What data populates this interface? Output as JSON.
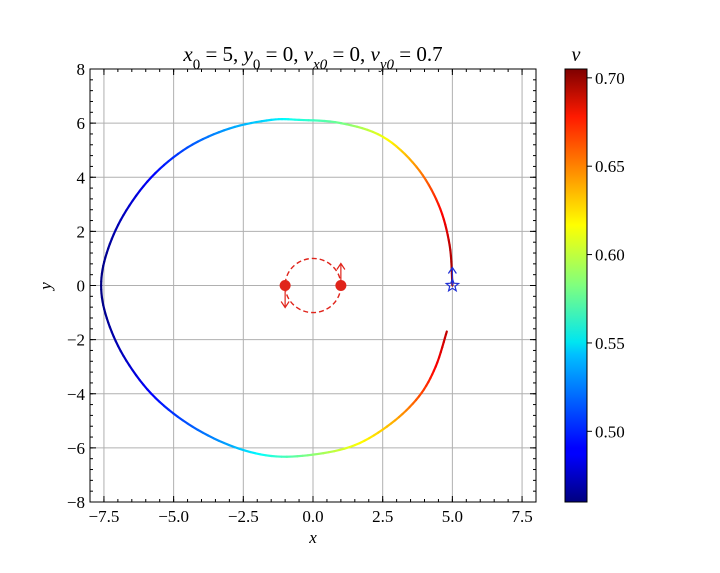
{
  "chart_data": {
    "type": "line",
    "title": {
      "parts": [
        {
          "t": "x",
          "it": true
        },
        {
          "t": "0",
          "sub": true
        },
        {
          "t": " = 5, "
        },
        {
          "t": "y",
          "it": true
        },
        {
          "t": "0",
          "sub": true
        },
        {
          "t": " = 0, "
        },
        {
          "t": "v",
          "it": true
        },
        {
          "t": "x0",
          "sub": true,
          "it": true
        },
        {
          "t": " = 0, "
        },
        {
          "t": "v",
          "it": true
        },
        {
          "t": "y0",
          "sub": true,
          "it": true
        },
        {
          "t": " = 0.7"
        }
      ]
    },
    "xlabel": "x",
    "ylabel": "y",
    "xlim": [
      -8,
      8
    ],
    "ylim": [
      -8,
      8
    ],
    "xticks": [
      -7.5,
      -5.0,
      -2.5,
      0.0,
      2.5,
      5.0,
      7.5
    ],
    "xtick_labels": [
      "−7.5",
      "−5.0",
      "−2.5",
      "0.0",
      "2.5",
      "5.0",
      "7.5"
    ],
    "yticks": [
      -8,
      -6,
      -4,
      -2,
      0,
      2,
      4,
      6,
      8
    ],
    "ytick_labels": [
      "−8",
      "−6",
      "−4",
      "−2",
      "0",
      "2",
      "4",
      "6",
      "8"
    ],
    "grid": true,
    "colorbar": {
      "label": "v",
      "range": [
        0.46,
        0.705
      ],
      "ticks": [
        0.5,
        0.55,
        0.6,
        0.65,
        0.7
      ],
      "tick_labels": [
        "0.50",
        "0.55",
        "0.60",
        "0.65",
        "0.70"
      ],
      "colormap": "jet"
    },
    "trajectory": {
      "points": [
        [
          5.0,
          0.0
        ],
        [
          4.9,
          1.5
        ],
        [
          4.5,
          3.0
        ],
        [
          3.7,
          4.4
        ],
        [
          2.5,
          5.5
        ],
        [
          1.0,
          6.0
        ],
        [
          -0.5,
          6.12
        ],
        [
          -1.5,
          6.12
        ],
        [
          -3.0,
          5.8
        ],
        [
          -4.5,
          5.1
        ],
        [
          -5.8,
          4.0
        ],
        [
          -6.8,
          2.6
        ],
        [
          -7.4,
          1.2
        ],
        [
          -7.6,
          0.0
        ],
        [
          -7.4,
          -1.2
        ],
        [
          -6.8,
          -2.6
        ],
        [
          -5.8,
          -4.0
        ],
        [
          -4.5,
          -5.1
        ],
        [
          -3.0,
          -5.9
        ],
        [
          -1.5,
          -6.3
        ],
        [
          0.0,
          -6.25
        ],
        [
          1.5,
          -5.9
        ],
        [
          2.8,
          -5.1
        ],
        [
          3.8,
          -4.1
        ],
        [
          4.4,
          -3.0
        ],
        [
          4.8,
          -1.7
        ]
      ],
      "speeds": [
        0.7,
        0.69,
        0.67,
        0.64,
        0.61,
        0.58,
        0.56,
        0.545,
        0.53,
        0.51,
        0.49,
        0.475,
        0.465,
        0.46,
        0.465,
        0.475,
        0.49,
        0.51,
        0.53,
        0.56,
        0.585,
        0.61,
        0.63,
        0.655,
        0.675,
        0.69
      ]
    },
    "start_marker": {
      "x": 5.0,
      "y": 0.0,
      "shape": "star",
      "color": "#1f2fd6",
      "arrow_direction": "up"
    },
    "central_bodies": {
      "orbit": {
        "cx": 0.0,
        "cy": 0.0,
        "r": 1.0,
        "color": "#e0241b",
        "style": "dashed"
      },
      "bodies": [
        {
          "x": -1.0,
          "y": 0.0,
          "arrow": "down"
        },
        {
          "x": 1.0,
          "y": 0.0,
          "arrow": "up"
        }
      ],
      "color": "#e0241b"
    }
  }
}
